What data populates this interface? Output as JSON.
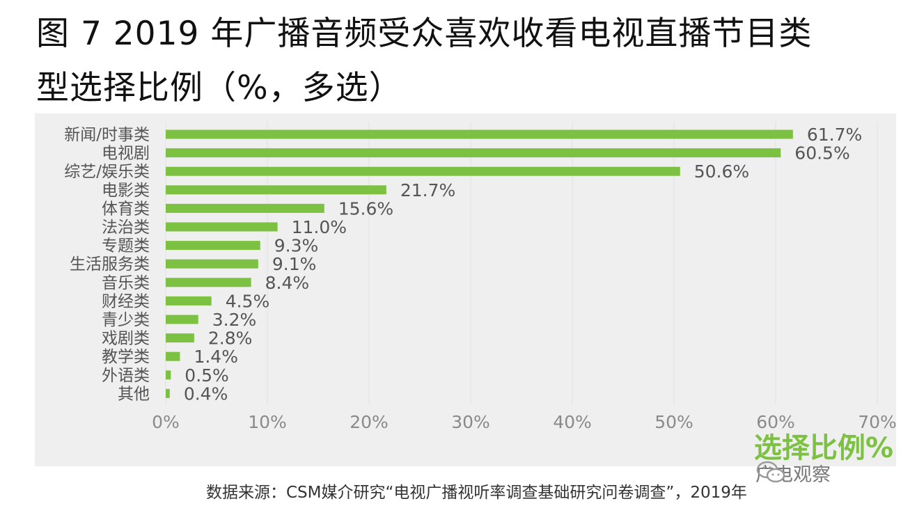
{
  "title_line1": "图 7 2019 年广播音频受众喜欢收看电视直播节目类",
  "title_line2": "型选择比例（%，多选）",
  "chart_data": {
    "type": "bar",
    "orientation": "horizontal",
    "categories": [
      "新闻/时事类",
      "电视剧",
      "综艺/娱乐类",
      "电影类",
      "体育类",
      "法治类",
      "专题类",
      "生活服务类",
      "音乐类",
      "财经类",
      "青少类",
      "戏剧类",
      "教学类",
      "外语类",
      "其他"
    ],
    "values": [
      61.7,
      60.5,
      50.6,
      21.7,
      15.6,
      11.0,
      9.3,
      9.1,
      8.4,
      4.5,
      3.2,
      2.8,
      1.4,
      0.5,
      0.4
    ],
    "value_labels": [
      "61.7%",
      "60.5%",
      "50.6%",
      "21.7%",
      "15.6%",
      "11.0%",
      "9.3%",
      "9.1%",
      "8.4%",
      "4.5%",
      "3.2%",
      "2.8%",
      "1.4%",
      "0.5%",
      "0.4%"
    ],
    "xlim": [
      0,
      70
    ],
    "x_ticks": [
      0,
      10,
      20,
      30,
      40,
      50,
      60,
      70
    ],
    "x_tick_labels": [
      "0%",
      "10%",
      "20%",
      "30%",
      "40%",
      "50%",
      "60%",
      "70%"
    ],
    "xlabel": "选择比例%",
    "bar_color": "#7dc142",
    "grid": true
  },
  "source": "数据来源：CSM媒介研究“电视广播视听率调查基础研究问卷调查”，2019年",
  "watermark": "广电观察",
  "watermark_icon": "wechat-icon"
}
